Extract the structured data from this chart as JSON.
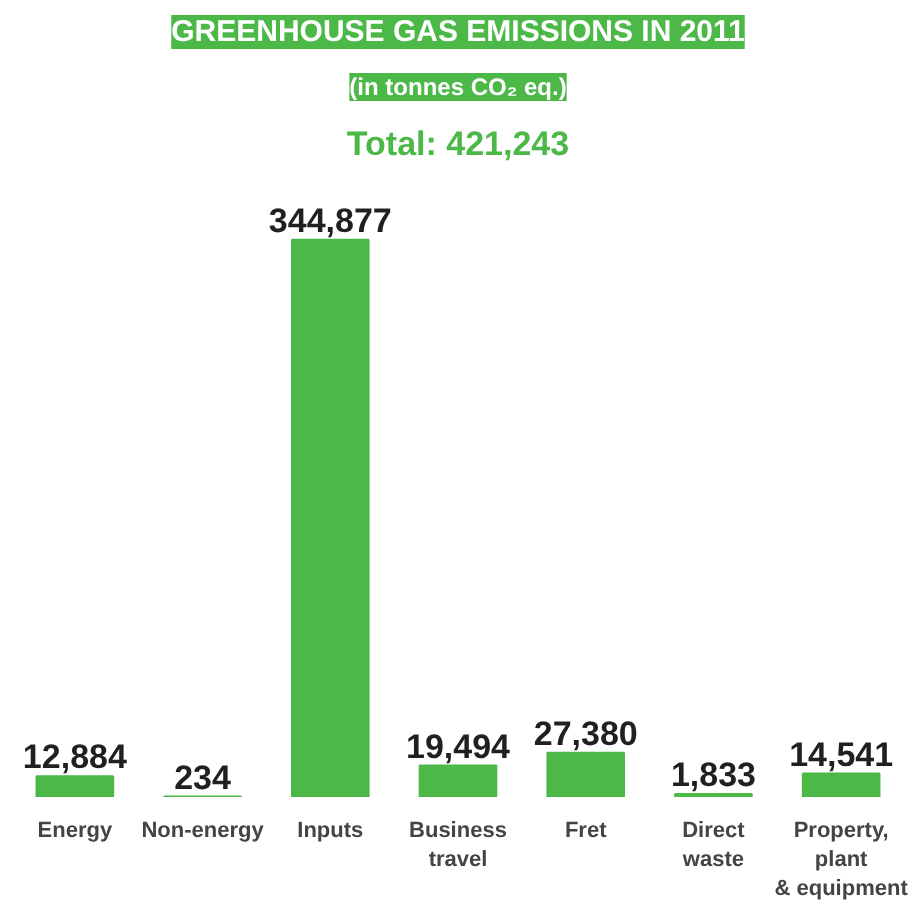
{
  "chart_data": {
    "type": "bar",
    "title": "GREENHOUSE GAS EMISSIONS IN 2011",
    "subtitle": "(in tonnes CO₂ eq.)",
    "annotations": [
      "Total: 421,243"
    ],
    "categories": [
      "Energy",
      "Non-energy",
      "Inputs",
      "Business\ntravel",
      "Fret",
      "Direct\nwaste",
      "Property,\nplant\n& equipment"
    ],
    "values": [
      12884,
      234,
      344877,
      19494,
      27380,
      1833,
      14541
    ],
    "value_labels": [
      "12,884",
      "234",
      "344,877",
      "19,494",
      "27,380",
      "1,833",
      "14,541"
    ],
    "color": "#4cb848"
  }
}
